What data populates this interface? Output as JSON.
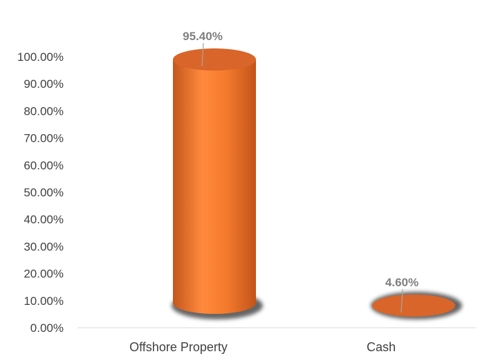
{
  "chart_data": {
    "type": "bar",
    "style": "3d-cylinder",
    "categories": [
      "Offshore Property",
      "Cash"
    ],
    "values": [
      95.4,
      4.6
    ],
    "data_labels": [
      "95.40%",
      "4.60%"
    ],
    "y_ticks": [
      "0.00%",
      "10.00%",
      "20.00%",
      "30.00%",
      "40.00%",
      "50.00%",
      "60.00%",
      "70.00%",
      "80.00%",
      "90.00%",
      "100.00%"
    ],
    "ylim": [
      0,
      100
    ],
    "grid": false,
    "legend": "none",
    "colors": {
      "bar": "#ed7d31",
      "bar_top": "#d9652a",
      "shadow": "#333333",
      "axis": "#d9d9d9",
      "text": "#404040",
      "label": "#7f7f7f"
    }
  }
}
